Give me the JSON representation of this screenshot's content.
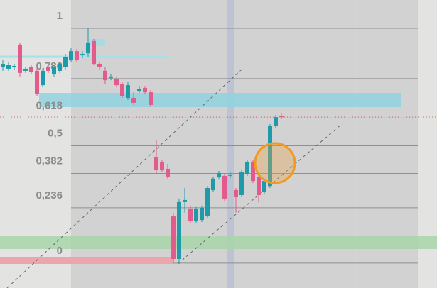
{
  "chart_data": {
    "type": "candlestick",
    "categories": [
      null,
      null,
      null,
      null,
      null,
      null,
      null,
      null,
      null,
      null,
      null,
      null,
      null,
      null,
      null,
      null,
      null,
      null,
      null,
      null,
      null,
      null,
      null,
      null,
      null,
      null,
      null,
      null,
      null,
      null,
      null,
      null,
      null,
      null,
      null,
      null,
      null,
      null,
      null,
      null,
      null,
      null,
      null,
      null,
      null,
      null,
      null,
      null,
      null,
      null
    ],
    "open": [
      0.834,
      0.828,
      0.834,
      0.931,
      0.819,
      0.834,
      0.819,
      0.758,
      0.834,
      0.804,
      0.819,
      0.834,
      0.864,
      0.903,
      0.885,
      0.894,
      0.946,
      0.849,
      0.819,
      0.789,
      0.785,
      0.764,
      0.704,
      0.704,
      0.734,
      0.746,
      0.728,
      0.45,
      0.432,
      0.402,
      0.199,
      0.018,
      0.26,
      0.23,
      0.178,
      0.184,
      0.199,
      0.311,
      0.366,
      0.372,
      0.372,
      0.311,
      0.29,
      0.381,
      0.432,
      0.366,
      0.305,
      0.329,
      0.583,
      0.628
    ],
    "high": [
      0.864,
      0.855,
      0.849,
      0.94,
      0.837,
      0.843,
      0.834,
      0.828,
      0.843,
      0.843,
      0.858,
      0.891,
      0.915,
      0.912,
      0.903,
      1.0,
      0.955,
      0.858,
      0.834,
      0.804,
      0.795,
      0.773,
      0.77,
      0.728,
      0.755,
      0.755,
      0.737,
      0.523,
      0.441,
      0.423,
      0.215,
      0.275,
      0.32,
      0.245,
      0.239,
      0.245,
      0.329,
      0.369,
      0.393,
      0.381,
      0.387,
      0.32,
      0.396,
      0.441,
      0.441,
      0.372,
      0.36,
      0.592,
      0.631,
      0.637
    ],
    "low": [
      0.819,
      0.819,
      0.825,
      0.795,
      0.81,
      0.804,
      0.713,
      0.749,
      0.81,
      0.795,
      0.81,
      0.825,
      0.855,
      0.855,
      0.873,
      0.879,
      0.843,
      0.825,
      0.764,
      0.779,
      0.749,
      0.704,
      0.695,
      0.674,
      0.725,
      0.719,
      0.665,
      0.381,
      0.387,
      0.356,
      -0.003,
      -0.003,
      0.215,
      0.169,
      0.169,
      0.175,
      0.19,
      0.302,
      0.356,
      0.266,
      0.363,
      0.215,
      0.281,
      0.372,
      0.341,
      0.26,
      0.296,
      0.32,
      0.574,
      0.613
    ],
    "close": [
      0.849,
      0.843,
      0.84,
      0.81,
      0.828,
      0.813,
      0.722,
      0.819,
      0.819,
      0.834,
      0.849,
      0.879,
      0.903,
      0.864,
      0.891,
      0.94,
      0.849,
      0.834,
      0.779,
      0.795,
      0.758,
      0.713,
      0.758,
      0.683,
      0.743,
      0.728,
      0.674,
      0.396,
      0.396,
      0.366,
      0.018,
      0.26,
      0.269,
      0.178,
      0.23,
      0.236,
      0.32,
      0.36,
      0.384,
      0.275,
      0.378,
      0.281,
      0.387,
      0.432,
      0.35,
      0.29,
      0.35,
      0.583,
      0.622,
      0.622
    ],
    "up_color": "#1e9aa9",
    "down_color": "#e35a8c",
    "ylim": [
      -0.106,
      1.121
    ],
    "yticks": [
      0,
      {
        "value": 0.236,
        "label": "0,236"
      },
      {
        "value": 0.382,
        "label": "0,382"
      },
      {
        "value": 0.5,
        "label": "0,5"
      },
      {
        "value": 0.618,
        "label": "0,618"
      },
      {
        "value": 0.786,
        "label": "0,786"
      },
      1
    ],
    "grid": true
  }
}
